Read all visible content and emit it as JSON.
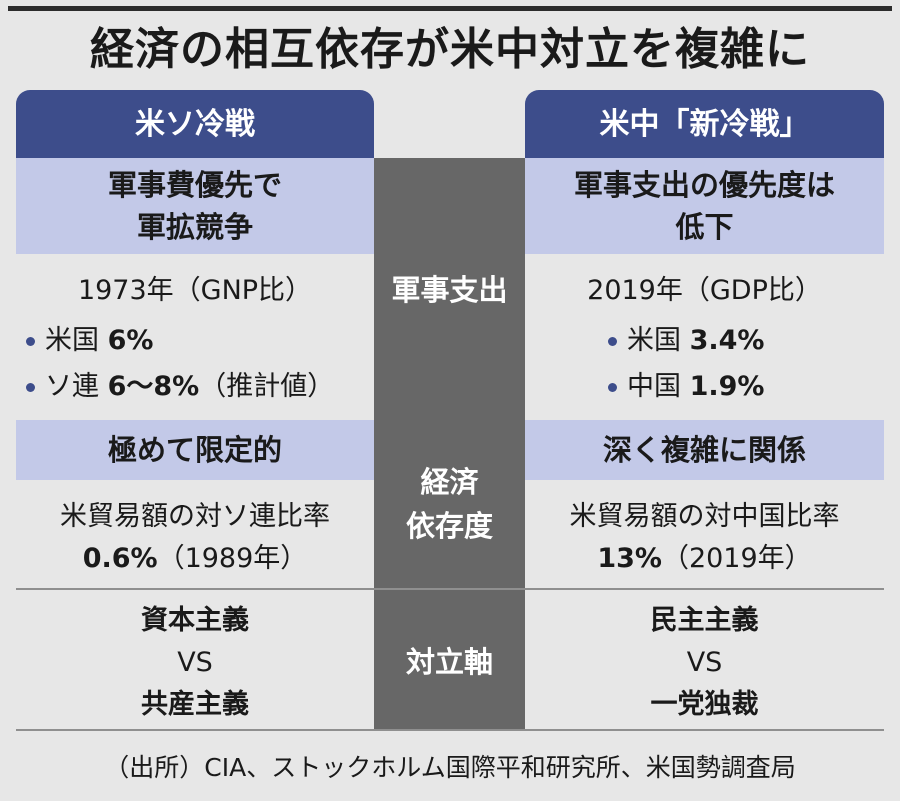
{
  "title": "経済の相互依存が米中対立を複雑に",
  "headers": {
    "left": "米ソ冷戦",
    "right": "米中「新冷戦」"
  },
  "military": {
    "label": "軍事支出",
    "left": {
      "summary_line1": "軍事費優先で",
      "summary_line2": "軍拡競争",
      "year": "1973年（GNP比）",
      "items": [
        {
          "name": "米国",
          "value": "6%",
          "note": ""
        },
        {
          "name": "ソ連",
          "value": "6〜8%",
          "note": "（推計値）"
        }
      ]
    },
    "right": {
      "summary_line1": "軍事支出の優先度は",
      "summary_line2": "低下",
      "year": "2019年（GDP比）",
      "items": [
        {
          "name": "米国",
          "value": "3.4%"
        },
        {
          "name": "中国",
          "value": "1.9%"
        }
      ]
    }
  },
  "economic": {
    "label_line1": "経済",
    "label_line2": "依存度",
    "left": {
      "summary": "極めて限定的",
      "metric": "米貿易額の対ソ連比率",
      "value": "0.6%",
      "year": "（1989年）"
    },
    "right": {
      "summary": "深く複雑に関係",
      "metric": "米貿易額の対中国比率",
      "value": "13%",
      "year": "（2019年）"
    }
  },
  "axis": {
    "label": "対立軸",
    "left": {
      "a": "資本主義",
      "vs": "VS",
      "b": "共産主義"
    },
    "right": {
      "a": "民主主義",
      "vs": "VS",
      "b": "一党独裁"
    }
  },
  "source": "（出所）CIA、ストックホルム国際平和研究所、米国勢調査局"
}
